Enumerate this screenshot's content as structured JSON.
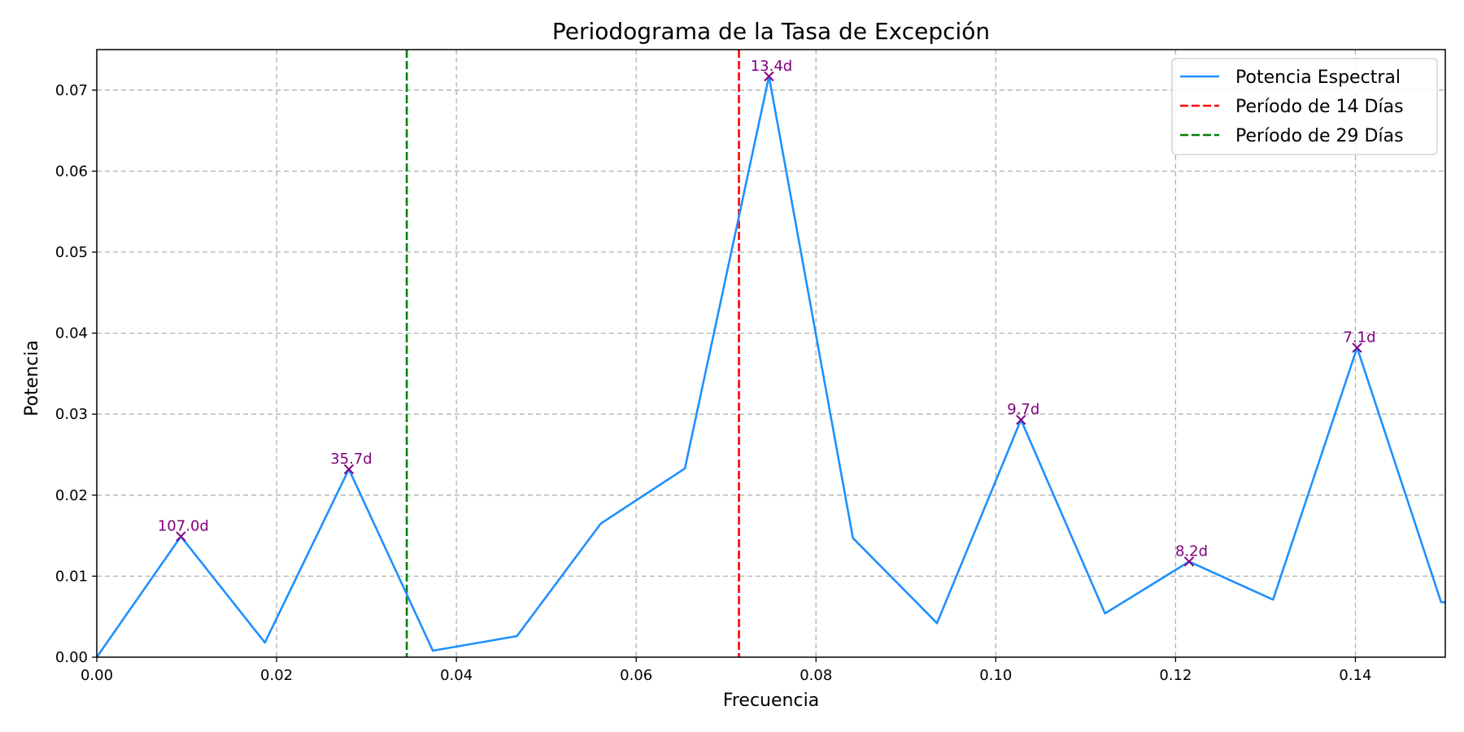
{
  "chart_data": {
    "type": "line",
    "title": "Periodograma de la Tasa de Excepción",
    "xlabel": "Frecuencia",
    "ylabel": "Potencia",
    "xlim": [
      0,
      0.15
    ],
    "ylim": [
      0,
      0.075
    ],
    "x_ticks": [
      "0.00",
      "0.02",
      "0.04",
      "0.06",
      "0.08",
      "0.10",
      "0.12",
      "0.14"
    ],
    "y_ticks": [
      "0.00",
      "0.01",
      "0.02",
      "0.03",
      "0.04",
      "0.05",
      "0.06",
      "0.07"
    ],
    "grid": true,
    "legend_position": "top-right",
    "series": [
      {
        "name": "Potencia Espectral",
        "color": "#1e90ff",
        "x": [
          0.0,
          0.00935,
          0.0187,
          0.02804,
          0.03738,
          0.04673,
          0.05607,
          0.06542,
          0.07477,
          0.08411,
          0.09346,
          0.1028,
          0.11215,
          0.1215,
          0.13084,
          0.14019,
          0.14953,
          0.16
        ],
        "y": [
          0.0,
          0.0149,
          0.0018,
          0.0232,
          0.0008,
          0.0026,
          0.0165,
          0.0233,
          0.0717,
          0.0147,
          0.0042,
          0.0293,
          0.0054,
          0.0118,
          0.0071,
          0.0382,
          0.0068,
          0.0065
        ]
      }
    ],
    "vlines": [
      {
        "name": "Período de 14 Días",
        "x": 0.07143,
        "color": "#ff0000"
      },
      {
        "name": "Período de 29 Días",
        "x": 0.03448,
        "color": "#008000"
      }
    ],
    "peaks": {
      "color": "#800080",
      "points": [
        {
          "x": 0.00935,
          "y": 0.0149,
          "label": "107.0d"
        },
        {
          "x": 0.02804,
          "y": 0.0232,
          "label": "35.7d"
        },
        {
          "x": 0.07477,
          "y": 0.0717,
          "label": "13.4d"
        },
        {
          "x": 0.1028,
          "y": 0.0293,
          "label": "9.7d"
        },
        {
          "x": 0.1215,
          "y": 0.0118,
          "label": "8.2d"
        },
        {
          "x": 0.14019,
          "y": 0.0382,
          "label": "7.1d"
        }
      ]
    }
  }
}
